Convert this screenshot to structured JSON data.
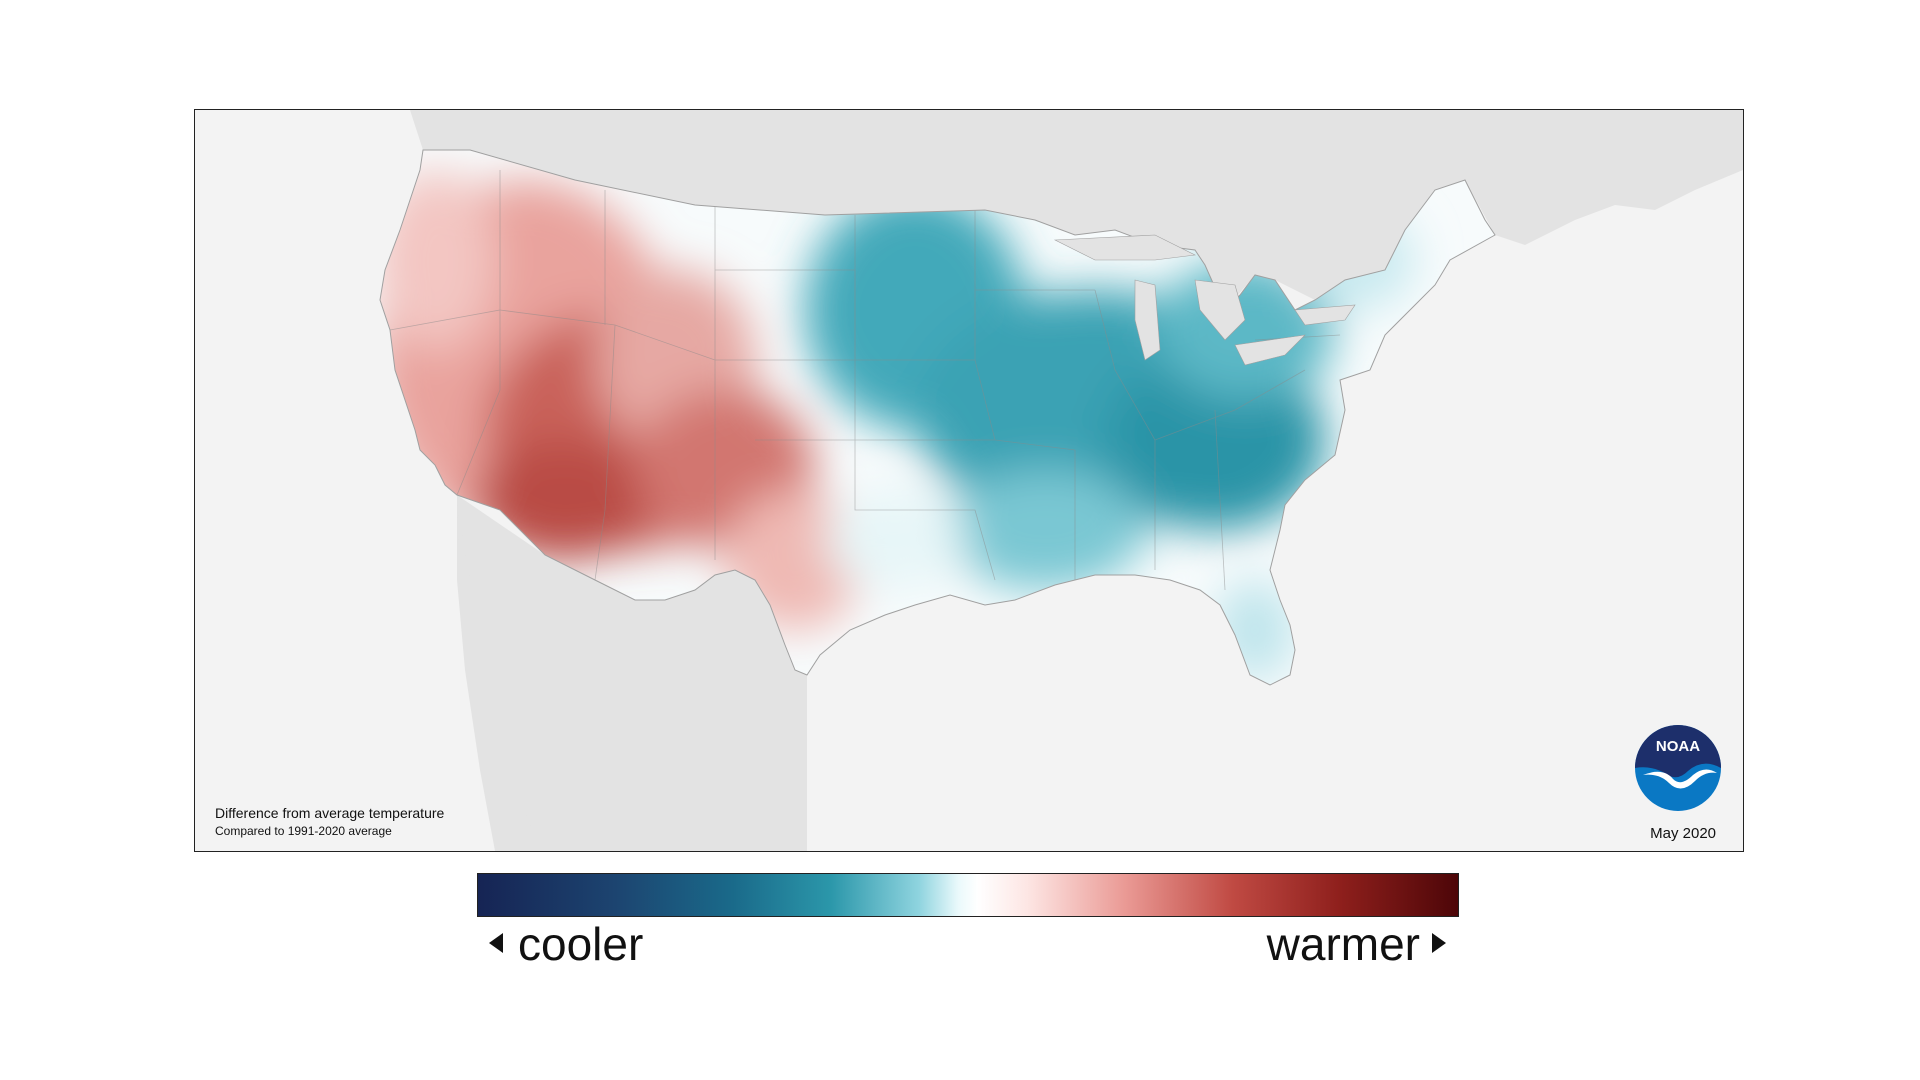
{
  "map": {
    "caption_title": "Difference from average temperature",
    "caption_subtitle": "Compared to 1991-2020 average",
    "date": "May 2020",
    "logo_text": "NOAA",
    "land_color": "#e3e3e3",
    "ocean_color": "#f3f3f3",
    "warm_color": "#c65a52",
    "cool_color": "#2a98aa"
  },
  "legend": {
    "cooler_label": "cooler",
    "warmer_label": "warmer",
    "cooler_icon": "triangle-left-icon",
    "warmer_icon": "triangle-right-icon"
  }
}
